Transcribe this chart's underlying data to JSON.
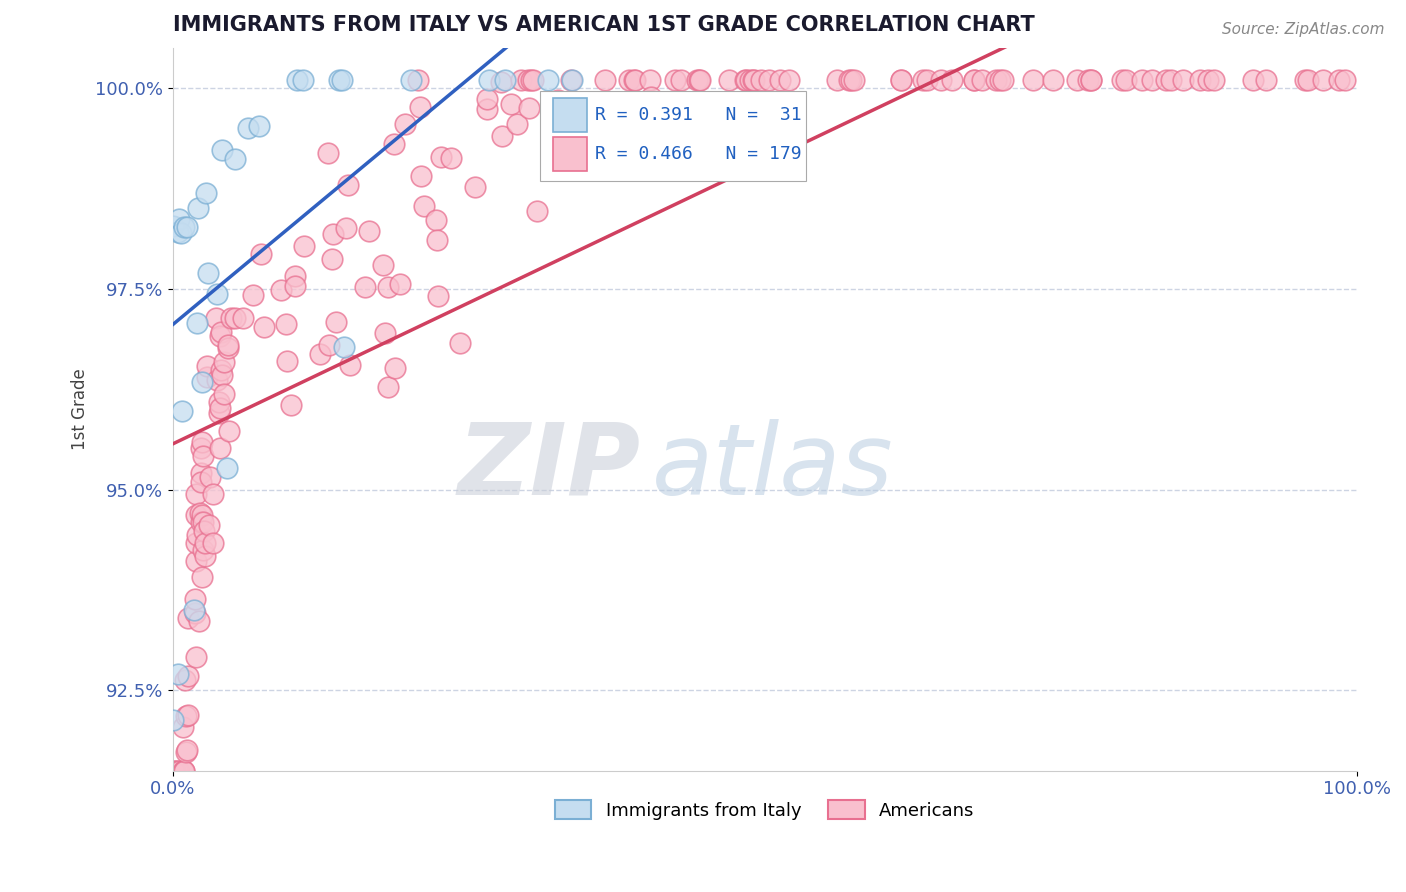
{
  "title": "IMMIGRANTS FROM ITALY VS AMERICAN 1ST GRADE CORRELATION CHART",
  "source": "Source: ZipAtlas.com",
  "ylabel": "1st Grade",
  "xmin": 0.0,
  "xmax": 1.0,
  "ymin": 0.915,
  "ymax": 1.005,
  "yticks": [
    0.925,
    0.95,
    0.975,
    1.0
  ],
  "ytick_labels": [
    "92.5%",
    "95.0%",
    "97.5%",
    "100.0%"
  ],
  "xticks": [
    0.0,
    1.0
  ],
  "xtick_labels": [
    "0.0%",
    "100.0%"
  ],
  "italy_R": 0.391,
  "italy_N": 31,
  "american_R": 0.466,
  "american_N": 179,
  "italy_edge_color": "#7bafd4",
  "italy_face_color": "#c5ddf0",
  "american_edge_color": "#e87090",
  "american_face_color": "#f9c0ce",
  "trend_italy_color": "#3060c0",
  "trend_american_color": "#d04060",
  "watermark_ZIP": "#c8cdd8",
  "watermark_atlas": "#b8cce0",
  "background_color": "#ffffff",
  "grid_color": "#c8d0e0",
  "title_color": "#1a1a2e",
  "axis_tick_color": "#4060b0",
  "axis_label_color": "#444444",
  "legend_text_color": "#2060c0",
  "source_color": "#888888"
}
